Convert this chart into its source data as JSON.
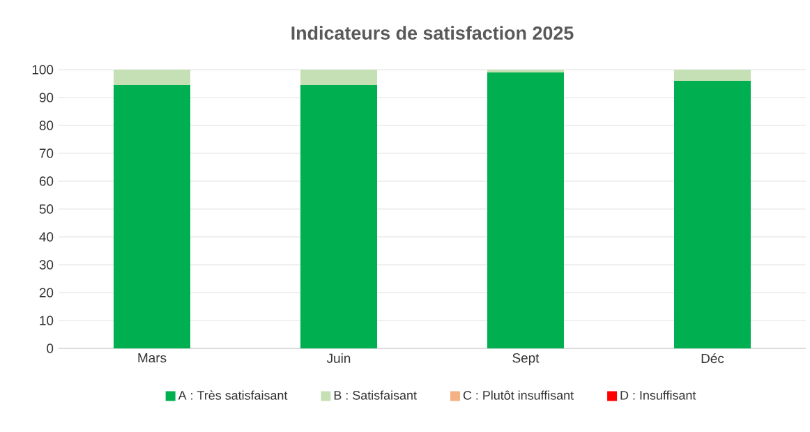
{
  "chart_data": {
    "type": "bar",
    "title": "Indicateurs de satisfaction 2025",
    "stacked": true,
    "categories": [
      "Mars",
      "Juin",
      "Sept",
      "Déc"
    ],
    "series": [
      {
        "name": "A : Très satisfaisant",
        "color": "#00b050",
        "values": [
          94.5,
          94.5,
          99,
          96
        ]
      },
      {
        "name": "B : Satisfaisant",
        "color": "#c5e0b4",
        "values": [
          5.5,
          5.5,
          1,
          4
        ]
      },
      {
        "name": "C : Plutôt insuffisant",
        "color": "#f4b183",
        "values": [
          0,
          0,
          0,
          0
        ]
      },
      {
        "name": "D : Insuffisant",
        "color": "#ff0000",
        "values": [
          0,
          0,
          0,
          0
        ]
      }
    ],
    "ylim": [
      0,
      100
    ],
    "yticks": [
      0,
      10,
      20,
      30,
      40,
      50,
      60,
      70,
      80,
      90,
      100
    ],
    "grid": "y",
    "legend": "bottom"
  }
}
